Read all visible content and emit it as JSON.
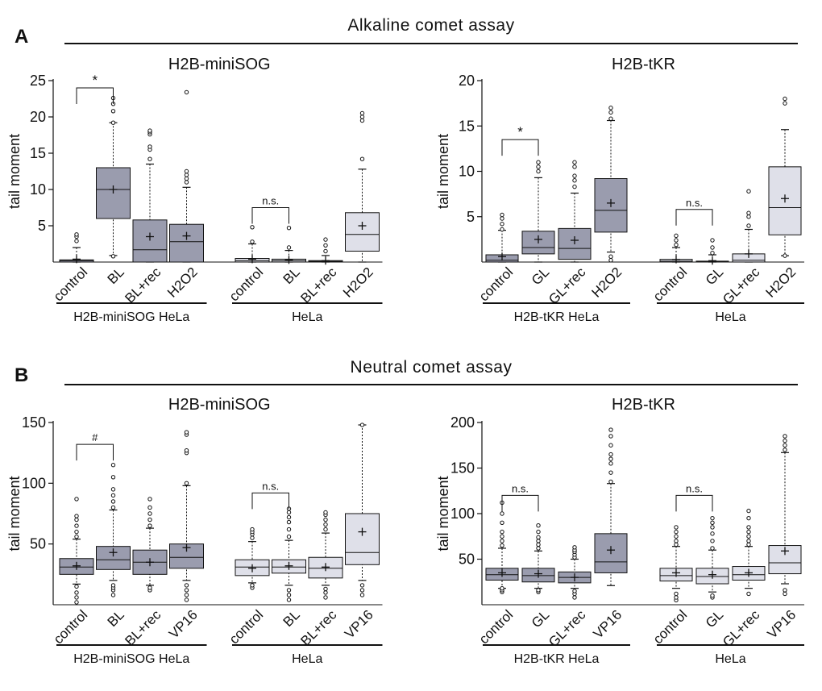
{
  "panels": [
    {
      "letter": "A",
      "title": "Alkaline comet assay"
    },
    {
      "letter": "B",
      "title": "Neutral comet assay"
    }
  ],
  "colors": {
    "dark": "#9a9cae",
    "light": "#dfe0e9",
    "ink": "#111111"
  },
  "chart_data": [
    {
      "type": "box",
      "title": "H2B-miniSOG",
      "ylabel": "tail moment",
      "ylim": [
        0,
        25
      ],
      "yticks": [
        5,
        10,
        15,
        20,
        25
      ],
      "categories": [
        "control",
        "BL",
        "BL+rec",
        "H2O2",
        "control",
        "BL",
        "BL+rec",
        "H2O2"
      ],
      "groups": [
        {
          "label": "H2B-miniSOG HeLa",
          "span": [
            0,
            3
          ]
        },
        {
          "label": "HeLa",
          "span": [
            4,
            7
          ]
        }
      ],
      "annotations": [
        {
          "text": "*",
          "from": 0,
          "to": 1,
          "y": 24
        },
        {
          "text": "n.s.",
          "from": 4,
          "to": 5,
          "y": 7.5
        }
      ],
      "boxes": [
        {
          "shade": "dark",
          "wlo": 0,
          "q1": 0,
          "med": 0.2,
          "q3": 0.3,
          "whi": 2,
          "mean": 0.4,
          "out": [
            2.9,
            3.5,
            3.8
          ]
        },
        {
          "shade": "dark",
          "wlo": 0.9,
          "q1": 6,
          "med": 10,
          "q3": 13,
          "whi": 19.2,
          "mean": 10,
          "out": [
            0.8,
            19.2,
            20.8,
            21.8,
            22.6
          ]
        },
        {
          "shade": "dark",
          "wlo": 0,
          "q1": 0,
          "med": 1.7,
          "q3": 5.8,
          "whi": 13.5,
          "mean": 3.5,
          "out": [
            14.2,
            15.5,
            15.9,
            17.6,
            17.9,
            18.1
          ]
        },
        {
          "shade": "dark",
          "wlo": 0,
          "q1": 0,
          "med": 2.8,
          "q3": 5.2,
          "whi": 10.3,
          "mean": 3.6,
          "out": [
            11,
            11.5,
            12,
            12.5,
            23.4
          ]
        },
        {
          "shade": "light",
          "wlo": 0,
          "q1": 0,
          "med": 0.2,
          "q3": 0.5,
          "whi": 2.5,
          "mean": 0.4,
          "out": [
            2.8,
            4.8
          ]
        },
        {
          "shade": "light",
          "wlo": 0,
          "q1": 0,
          "med": 0.2,
          "q3": 0.4,
          "whi": 1.6,
          "mean": 0.3,
          "out": [
            2,
            4.7
          ]
        },
        {
          "shade": "light",
          "wlo": 0,
          "q1": 0,
          "med": 0.1,
          "q3": 0.2,
          "whi": 0.9,
          "mean": 0.2,
          "out": [
            1.5,
            2.3,
            3.1
          ]
        },
        {
          "shade": "light",
          "wlo": 0,
          "q1": 1.5,
          "med": 3.8,
          "q3": 6.8,
          "whi": 12.8,
          "mean": 5,
          "out": [
            14.2,
            19.5,
            20,
            20.5
          ]
        }
      ]
    },
    {
      "type": "box",
      "title": "H2B-tKR",
      "ylabel": "tail moment",
      "ylim": [
        0,
        20
      ],
      "yticks": [
        5,
        10,
        15,
        20
      ],
      "categories": [
        "control",
        "GL",
        "GL+rec",
        "H2O2",
        "control",
        "GL",
        "GL+rec",
        "H2O2"
      ],
      "groups": [
        {
          "label": "H2B-tKR HeLa",
          "span": [
            0,
            3
          ]
        },
        {
          "label": "HeLa",
          "span": [
            4,
            7
          ]
        }
      ],
      "annotations": [
        {
          "text": "*",
          "from": 0,
          "to": 1,
          "y": 13.5
        },
        {
          "text": "n.s.",
          "from": 4,
          "to": 5,
          "y": 5.8
        }
      ],
      "boxes": [
        {
          "shade": "dark",
          "wlo": 0,
          "q1": 0,
          "med": 0.2,
          "q3": 0.8,
          "whi": 3.5,
          "mean": 0.6,
          "out": [
            3.6,
            4.2,
            4.8,
            5.2
          ]
        },
        {
          "shade": "dark",
          "wlo": 0,
          "q1": 0.9,
          "med": 1.6,
          "q3": 3.4,
          "whi": 9.3,
          "mean": 2.5,
          "out": [
            10,
            10.5,
            11
          ]
        },
        {
          "shade": "dark",
          "wlo": 0,
          "q1": 0.3,
          "med": 1.5,
          "q3": 3.7,
          "whi": 7.6,
          "mean": 2.4,
          "out": [
            8.3,
            9,
            9.5,
            10.5,
            11
          ]
        },
        {
          "shade": "dark",
          "wlo": 1.1,
          "q1": 3.3,
          "med": 5.7,
          "q3": 9.2,
          "whi": 15.6,
          "mean": 6.5,
          "out": [
            0.2,
            0.6,
            15.8,
            16.5,
            17
          ]
        },
        {
          "shade": "light",
          "wlo": 0,
          "q1": 0,
          "med": 0.1,
          "q3": 0.3,
          "whi": 1.6,
          "mean": 0.3,
          "out": [
            1.9,
            2.4,
            2.9
          ]
        },
        {
          "shade": "light",
          "wlo": 0,
          "q1": 0,
          "med": 0.05,
          "q3": 0.1,
          "whi": 0.8,
          "mean": 0.15,
          "out": [
            1,
            1.6,
            2.4
          ]
        },
        {
          "shade": "light",
          "wlo": 0,
          "q1": 0,
          "med": 0.2,
          "q3": 0.9,
          "whi": 3.6,
          "mean": 0.9,
          "out": [
            4,
            5,
            5.4,
            7.8
          ]
        },
        {
          "shade": "light",
          "wlo": 0.7,
          "q1": 3,
          "med": 6,
          "q3": 10.5,
          "whi": 14.6,
          "mean": 7,
          "out": [
            0.7,
            17.5,
            18
          ]
        }
      ]
    },
    {
      "type": "box",
      "title": "H2B-miniSOG",
      "ylabel": "tail moment",
      "ylim": [
        0,
        150
      ],
      "yticks": [
        50,
        100,
        150
      ],
      "categories": [
        "control",
        "BL",
        "BL+rec",
        "VP16",
        "control",
        "BL",
        "BL+rec",
        "VP16"
      ],
      "groups": [
        {
          "label": "H2B-miniSOG HeLa",
          "span": [
            0,
            3
          ]
        },
        {
          "label": "HeLa",
          "span": [
            4,
            7
          ]
        }
      ],
      "annotations": [
        {
          "text": "#",
          "from": 0,
          "to": 1,
          "y": 132
        },
        {
          "text": "n.s.",
          "from": 4,
          "to": 5,
          "y": 92
        }
      ],
      "boxes": [
        {
          "shade": "dark",
          "wlo": 17,
          "q1": 25,
          "med": 31,
          "q3": 38,
          "whi": 54,
          "mean": 32,
          "out": [
            2,
            6,
            10,
            15,
            56,
            60,
            65,
            70,
            73,
            87
          ]
        },
        {
          "shade": "dark",
          "wlo": 20,
          "q1": 29,
          "med": 37,
          "q3": 48,
          "whi": 78,
          "mean": 43,
          "out": [
            8,
            12,
            14,
            16,
            80,
            85,
            90,
            95,
            105,
            115
          ]
        },
        {
          "shade": "dark",
          "wlo": 16,
          "q1": 25,
          "med": 35,
          "q3": 45,
          "whi": 63,
          "mean": 35,
          "out": [
            12,
            14,
            65,
            70,
            75,
            80,
            87
          ]
        },
        {
          "shade": "dark",
          "wlo": 20,
          "q1": 30,
          "med": 39,
          "q3": 50,
          "whi": 98,
          "mean": 47,
          "out": [
            4,
            8,
            12,
            16,
            100,
            125,
            127,
            140,
            142
          ]
        },
        {
          "shade": "light",
          "wlo": 18,
          "q1": 24,
          "med": 31,
          "q3": 37,
          "whi": 52,
          "mean": 30,
          "out": [
            14,
            16,
            55,
            58,
            60,
            62
          ]
        },
        {
          "shade": "light",
          "wlo": 16,
          "q1": 26,
          "med": 31,
          "q3": 37,
          "whi": 53,
          "mean": 32,
          "out": [
            4,
            8,
            12,
            56,
            62,
            68,
            72,
            76,
            79
          ]
        },
        {
          "shade": "light",
          "wlo": 16,
          "q1": 22,
          "med": 30,
          "q3": 39,
          "whi": 59,
          "mean": 31,
          "out": [
            6,
            10,
            13,
            62,
            66,
            70,
            74,
            76
          ]
        },
        {
          "shade": "light",
          "wlo": 20,
          "q1": 33,
          "med": 43,
          "q3": 75,
          "whi": 148,
          "mean": 60,
          "out": [
            8,
            12,
            16,
            148
          ]
        }
      ]
    },
    {
      "type": "box",
      "title": "H2B-tKR",
      "ylabel": "tail moment",
      "ylim": [
        0,
        200
      ],
      "yticks": [
        50,
        100,
        150,
        200
      ],
      "categories": [
        "control",
        "GL",
        "GL+rec",
        "VP16",
        "control",
        "GL",
        "GL+rec",
        "VP16"
      ],
      "groups": [
        {
          "label": "H2B-tKR HeLa",
          "span": [
            0,
            3
          ]
        },
        {
          "label": "HeLa",
          "span": [
            4,
            7
          ]
        }
      ],
      "annotations": [
        {
          "text": "n.s.",
          "from": 0,
          "to": 1,
          "y": 120
        },
        {
          "text": "n.s.",
          "from": 4,
          "to": 5,
          "y": 120
        }
      ],
      "boxes": [
        {
          "shade": "dark",
          "wlo": 18,
          "q1": 27,
          "med": 33,
          "q3": 40,
          "whi": 62,
          "mean": 35,
          "out": [
            14,
            16,
            18,
            65,
            70,
            75,
            80,
            90,
            100,
            112
          ]
        },
        {
          "shade": "dark",
          "wlo": 18,
          "q1": 25,
          "med": 32,
          "q3": 40,
          "whi": 59,
          "mean": 34,
          "out": [
            14,
            16,
            62,
            66,
            70,
            74,
            80,
            87
          ]
        },
        {
          "shade": "dark",
          "wlo": 18,
          "q1": 24,
          "med": 30,
          "q3": 36,
          "whi": 50,
          "mean": 30,
          "out": [
            8,
            12,
            15,
            52,
            55,
            58,
            60,
            63
          ]
        },
        {
          "shade": "dark",
          "wlo": 21,
          "q1": 35,
          "med": 47,
          "q3": 78,
          "whi": 133,
          "mean": 60,
          "out": [
            135,
            145,
            155,
            160,
            165,
            175,
            185,
            192
          ]
        },
        {
          "shade": "light",
          "wlo": 18,
          "q1": 26,
          "med": 32,
          "q3": 40,
          "whi": 64,
          "mean": 35,
          "out": [
            5,
            8,
            12,
            66,
            70,
            75,
            80,
            85
          ]
        },
        {
          "shade": "light",
          "wlo": 14,
          "q1": 23,
          "med": 31,
          "q3": 40,
          "whi": 60,
          "mean": 33,
          "out": [
            8,
            10,
            62,
            70,
            78,
            85,
            90,
            95
          ]
        },
        {
          "shade": "light",
          "wlo": 18,
          "q1": 27,
          "med": 33,
          "q3": 42,
          "whi": 64,
          "mean": 35,
          "out": [
            12,
            66,
            70,
            75,
            80,
            85,
            95,
            103
          ]
        },
        {
          "shade": "light",
          "wlo": 23,
          "q1": 34,
          "med": 46,
          "q3": 65,
          "whi": 167,
          "mean": 59,
          "out": [
            12,
            16,
            170,
            175,
            180,
            185
          ]
        }
      ]
    }
  ]
}
